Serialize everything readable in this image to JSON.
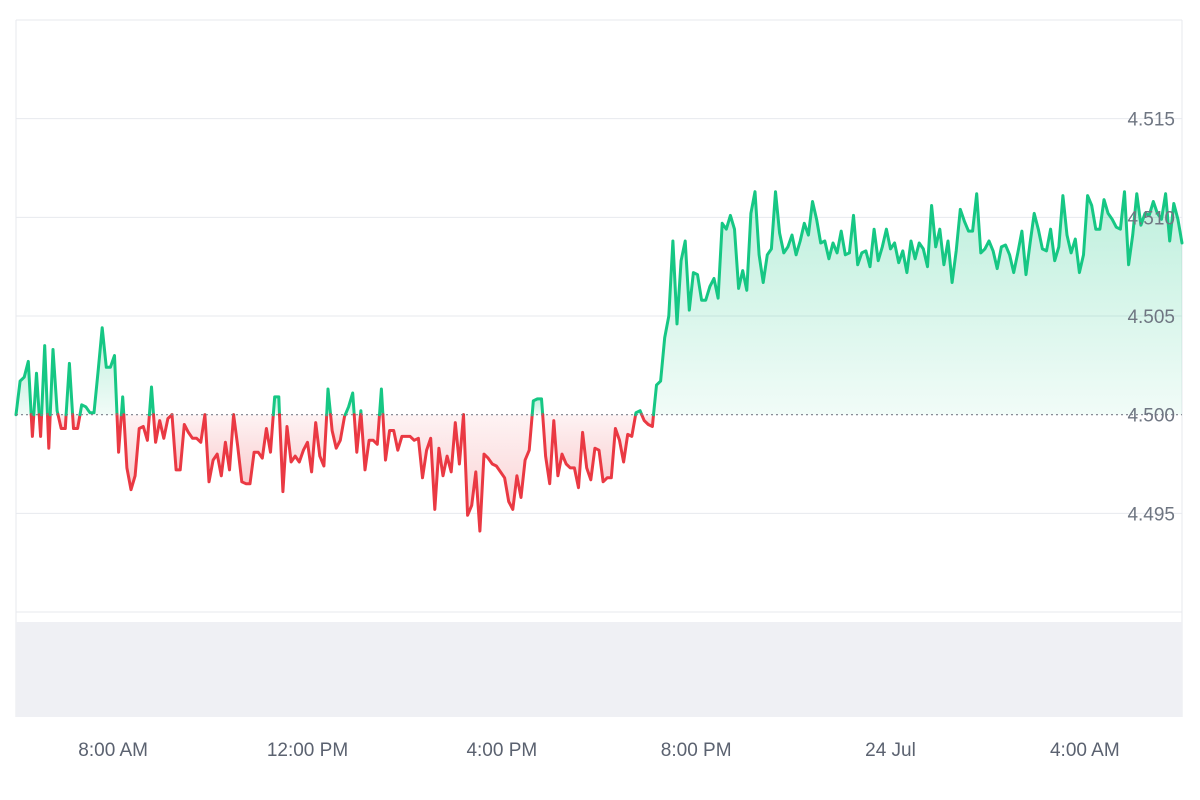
{
  "chart_data": {
    "type": "line",
    "title": "",
    "xlabel": "",
    "ylabel": "",
    "baseline": 4.5,
    "ylim": [
      4.49,
      4.52
    ],
    "yticks": [
      "4.495",
      "4.500",
      "4.505",
      "4.510",
      "4.515"
    ],
    "yticks_values": [
      4.495,
      4.5,
      4.505,
      4.51,
      4.515
    ],
    "xticks": [
      "8:00 AM",
      "12:00 PM",
      "4:00 PM",
      "8:00 PM",
      "24 Jul",
      "4:00 AM"
    ],
    "xticks_hours": [
      2,
      6,
      10,
      14,
      18,
      22
    ],
    "grid": true,
    "legend": "none",
    "colors": {
      "up": "#16c784",
      "down": "#ea3943",
      "up_fill": "#16c784",
      "down_fill": "#ea3943",
      "grid": "#e7e9ee",
      "baseline": "#7a7f89",
      "volume": "#eff0f4"
    },
    "x_start_hour": 0,
    "x_end_hour": 24,
    "values": [
      4.5,
      4.5017,
      4.5019,
      4.5027,
      4.4989,
      4.5021,
      4.4989,
      4.5035,
      4.4983,
      4.5033,
      4.5002,
      4.4993,
      4.4993,
      4.5026,
      4.4993,
      4.4993,
      4.5005,
      4.5004,
      4.5001,
      4.5001,
      4.5022,
      4.5044,
      4.5024,
      4.5024,
      4.503,
      4.4981,
      4.5009,
      4.4973,
      4.4962,
      4.4969,
      4.4993,
      4.4994,
      4.4987,
      4.5014,
      4.4986,
      4.4997,
      4.4988,
      4.4998,
      4.5,
      4.4972,
      4.4972,
      4.4995,
      4.4991,
      4.4988,
      4.4988,
      4.4986,
      4.5,
      4.4966,
      4.4977,
      4.498,
      4.4969,
      4.4986,
      4.4972,
      4.5,
      4.4984,
      4.4966,
      4.4965,
      4.4965,
      4.4981,
      4.4981,
      4.4978,
      4.4993,
      4.4981,
      4.5009,
      4.5009,
      4.4961,
      4.4994,
      4.4976,
      4.4979,
      4.4976,
      4.4982,
      4.4986,
      4.4971,
      4.4996,
      4.4979,
      4.4974,
      4.5013,
      4.4992,
      4.4983,
      4.4987,
      4.4999,
      4.5004,
      4.5011,
      4.4981,
      4.5002,
      4.4972,
      4.4987,
      4.4987,
      4.4985,
      4.5013,
      4.4977,
      4.4992,
      4.4992,
      4.4982,
      4.4989,
      4.4989,
      4.4989,
      4.4987,
      4.4988,
      4.4968,
      4.4982,
      4.4988,
      4.4952,
      4.4983,
      4.4969,
      4.4979,
      4.4971,
      4.4996,
      4.4975,
      4.5,
      4.4949,
      4.4954,
      4.4971,
      4.4941,
      4.498,
      4.4978,
      4.4975,
      4.4974,
      4.4971,
      4.4968,
      4.4956,
      4.4952,
      4.4969,
      4.4958,
      4.4977,
      4.4982,
      4.5007,
      4.5008,
      4.5008,
      4.4979,
      4.4965,
      4.4997,
      4.4969,
      4.498,
      4.4975,
      4.4973,
      4.4973,
      4.4963,
      4.4991,
      4.4973,
      4.4967,
      4.4983,
      4.4982,
      4.4966,
      4.4968,
      4.4968,
      4.4993,
      4.4987,
      4.4976,
      4.499,
      4.4989,
      4.5001,
      4.5002,
      4.4997,
      4.4995,
      4.4994,
      4.5015,
      4.5017,
      4.5039,
      4.505,
      4.5088,
      4.5046,
      4.5078,
      4.5088,
      4.5053,
      4.5072,
      4.5071,
      4.5058,
      4.5058,
      4.5065,
      4.5069,
      4.5059,
      4.5097,
      4.5094,
      4.5101,
      4.5094,
      4.5064,
      4.5073,
      4.5063,
      4.5102,
      4.5113,
      4.5081,
      4.5067,
      4.5081,
      4.5084,
      4.5113,
      4.5092,
      4.5082,
      4.5085,
      4.5091,
      4.5081,
      4.5088,
      4.5097,
      4.5091,
      4.5108,
      4.5099,
      4.5087,
      4.5088,
      4.5079,
      4.5087,
      4.5082,
      4.5093,
      4.5081,
      4.5082,
      4.5101,
      4.5076,
      4.5082,
      4.5083,
      4.5075,
      4.5094,
      4.5078,
      4.5085,
      4.5094,
      4.5084,
      4.5087,
      4.5077,
      4.5083,
      4.5072,
      4.5088,
      4.5079,
      4.5087,
      4.5084,
      4.5075,
      4.5106,
      4.5085,
      4.5094,
      4.5076,
      4.5088,
      4.5067,
      4.5083,
      4.5104,
      4.5098,
      4.5093,
      4.5093,
      4.5112,
      4.5082,
      4.5084,
      4.5088,
      4.5083,
      4.5074,
      4.5085,
      4.5086,
      4.5081,
      4.5072,
      4.5082,
      4.5093,
      4.5071,
      4.5087,
      4.5102,
      4.5094,
      4.5084,
      4.5083,
      4.5094,
      4.5078,
      4.5085,
      4.5111,
      4.5091,
      4.5082,
      4.5089,
      4.5072,
      4.5081,
      4.5111,
      4.5106,
      4.5094,
      4.5094,
      4.5109,
      4.5102,
      4.5099,
      4.5095,
      4.5094,
      4.5113,
      4.5076,
      4.5091,
      4.5112,
      4.5096,
      4.5102,
      4.5101,
      4.5108,
      4.5102,
      4.5099,
      4.5112,
      4.5088,
      4.5107,
      4.5099,
      4.5087
    ]
  }
}
